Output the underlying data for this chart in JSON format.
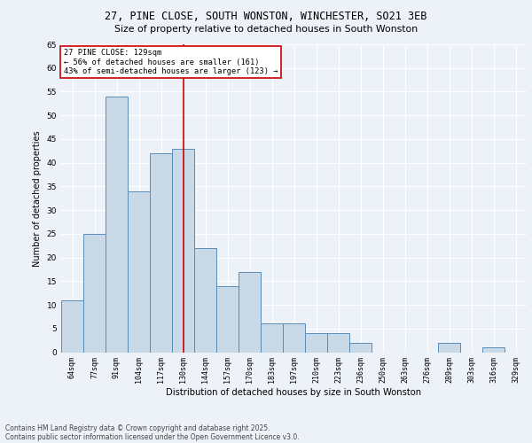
{
  "title1": "27, PINE CLOSE, SOUTH WONSTON, WINCHESTER, SO21 3EB",
  "title2": "Size of property relative to detached houses in South Wonston",
  "xlabel": "Distribution of detached houses by size in South Wonston",
  "ylabel": "Number of detached properties",
  "categories": [
    "64sqm",
    "77sqm",
    "91sqm",
    "104sqm",
    "117sqm",
    "130sqm",
    "144sqm",
    "157sqm",
    "170sqm",
    "183sqm",
    "197sqm",
    "210sqm",
    "223sqm",
    "236sqm",
    "250sqm",
    "263sqm",
    "276sqm",
    "289sqm",
    "303sqm",
    "316sqm",
    "329sqm"
  ],
  "values": [
    11,
    25,
    54,
    34,
    42,
    43,
    22,
    14,
    17,
    6,
    6,
    4,
    4,
    2,
    0,
    0,
    0,
    2,
    0,
    1,
    0
  ],
  "bar_color": "#c9d9e8",
  "bar_edge_color": "#5b8db8",
  "ref_line_x": 5,
  "ref_label": "27 PINE CLOSE: 129sqm",
  "annotation_line1": "← 56% of detached houses are smaller (161)",
  "annotation_line2": "43% of semi-detached houses are larger (123) →",
  "ref_line_color": "#cc0000",
  "annotation_box_color": "#cc0000",
  "ylim": [
    0,
    65
  ],
  "yticks": [
    0,
    5,
    10,
    15,
    20,
    25,
    30,
    35,
    40,
    45,
    50,
    55,
    60,
    65
  ],
  "footnote1": "Contains HM Land Registry data © Crown copyright and database right 2025.",
  "footnote2": "Contains public sector information licensed under the Open Government Licence v3.0.",
  "bg_color": "#edf2f9",
  "plot_bg_color": "#edf2f9"
}
